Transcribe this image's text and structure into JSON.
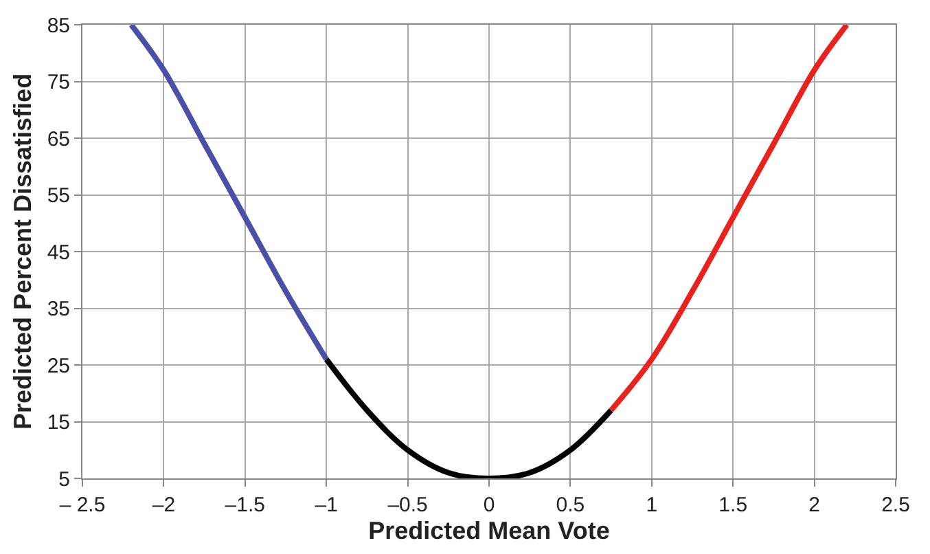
{
  "chart_data": {
    "type": "line",
    "xlabel": "Predicted Mean Vote",
    "ylabel": "Predicted Percent Dissatisfied",
    "series": [
      {
        "color": "#4a4fa8",
        "x": [
          -2.2,
          -2,
          -1.75,
          -1.5,
          -1.25,
          -1
        ],
        "values": [
          85,
          77,
          64,
          51,
          38,
          26
        ]
      },
      {
        "color": "#000000",
        "x": [
          -1,
          -0.75,
          -0.5,
          -0.25,
          0,
          0.25,
          0.5,
          0.75
        ],
        "values": [
          26,
          17,
          10,
          6,
          5,
          6,
          10,
          17
        ]
      },
      {
        "color": "#e8231c",
        "x": [
          0.75,
          1,
          1.25,
          1.5,
          1.75,
          2,
          2.2
        ],
        "values": [
          17,
          26,
          38,
          51,
          64,
          77,
          85
        ]
      }
    ],
    "xlim": [
      -2.5,
      2.5
    ],
    "xticks": [
      {
        "value": -2.5,
        "label": "– 2.5"
      },
      {
        "value": -2,
        "label": "–2"
      },
      {
        "value": -1.5,
        "label": "–1.5"
      },
      {
        "value": -1,
        "label": "–1"
      },
      {
        "value": -0.5,
        "label": "–0.5"
      },
      0,
      0.5,
      1,
      1.5,
      2,
      2.5
    ],
    "ylim": [
      5,
      85
    ],
    "yticks": [
      5,
      15,
      25,
      35,
      45,
      55,
      65,
      75,
      85
    ],
    "grid": true,
    "marker": "none",
    "line_style": "solid"
  }
}
